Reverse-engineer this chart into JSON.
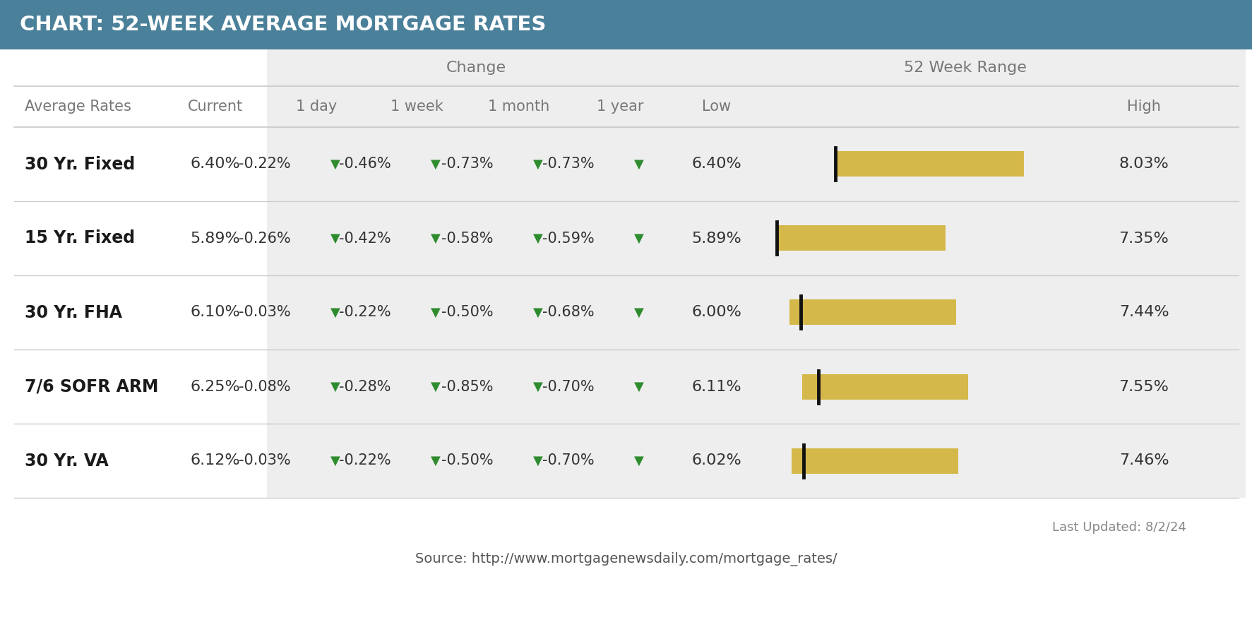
{
  "title": "CHART: 52-WEEK AVERAGE MORTGAGE RATES",
  "title_bg_color": "#4a8099",
  "title_text_color": "#ffffff",
  "change_group_label": "Change",
  "range_group_label": "52 Week Range",
  "rows": [
    {
      "name": "30 Yr. Fixed",
      "current": "6.40%",
      "day": "-0.22%",
      "week": "-0.46%",
      "month": "-0.73%",
      "year": "-0.73%",
      "low": "6.40%",
      "low_val": 6.4,
      "high": "8.03%",
      "high_val": 8.03,
      "current_val": 6.4
    },
    {
      "name": "15 Yr. Fixed",
      "current": "5.89%",
      "day": "-0.26%",
      "week": "-0.42%",
      "month": "-0.58%",
      "year": "-0.59%",
      "low": "5.89%",
      "low_val": 5.89,
      "high": "7.35%",
      "high_val": 7.35,
      "current_val": 5.89
    },
    {
      "name": "30 Yr. FHA",
      "current": "6.10%",
      "day": "-0.03%",
      "week": "-0.22%",
      "month": "-0.50%",
      "year": "-0.68%",
      "low": "6.00%",
      "low_val": 6.0,
      "high": "7.44%",
      "high_val": 7.44,
      "current_val": 6.1
    },
    {
      "name": "7/6 SOFR ARM",
      "current": "6.25%",
      "day": "-0.08%",
      "week": "-0.28%",
      "month": "-0.85%",
      "year": "-0.70%",
      "low": "6.11%",
      "low_val": 6.11,
      "high": "7.55%",
      "high_val": 7.55,
      "current_val": 6.25
    },
    {
      "name": "30 Yr. VA",
      "current": "6.12%",
      "day": "-0.03%",
      "week": "-0.22%",
      "month": "-0.50%",
      "year": "-0.70%",
      "low": "6.02%",
      "low_val": 6.02,
      "high": "7.46%",
      "high_val": 7.46,
      "current_val": 6.12
    }
  ],
  "down_arrow_color": "#2e8b2e",
  "bar_color": "#d4b84a",
  "marker_color": "#111111",
  "last_updated": "Last Updated: 8/2/24",
  "source": "Source: http://www.mortgagenewsdaily.com/mortgage_rates/",
  "footer_text_color": "#888888",
  "shade_color": "#eeeeee",
  "row_line_color": "#cccccc",
  "header_text_color": "#777777"
}
